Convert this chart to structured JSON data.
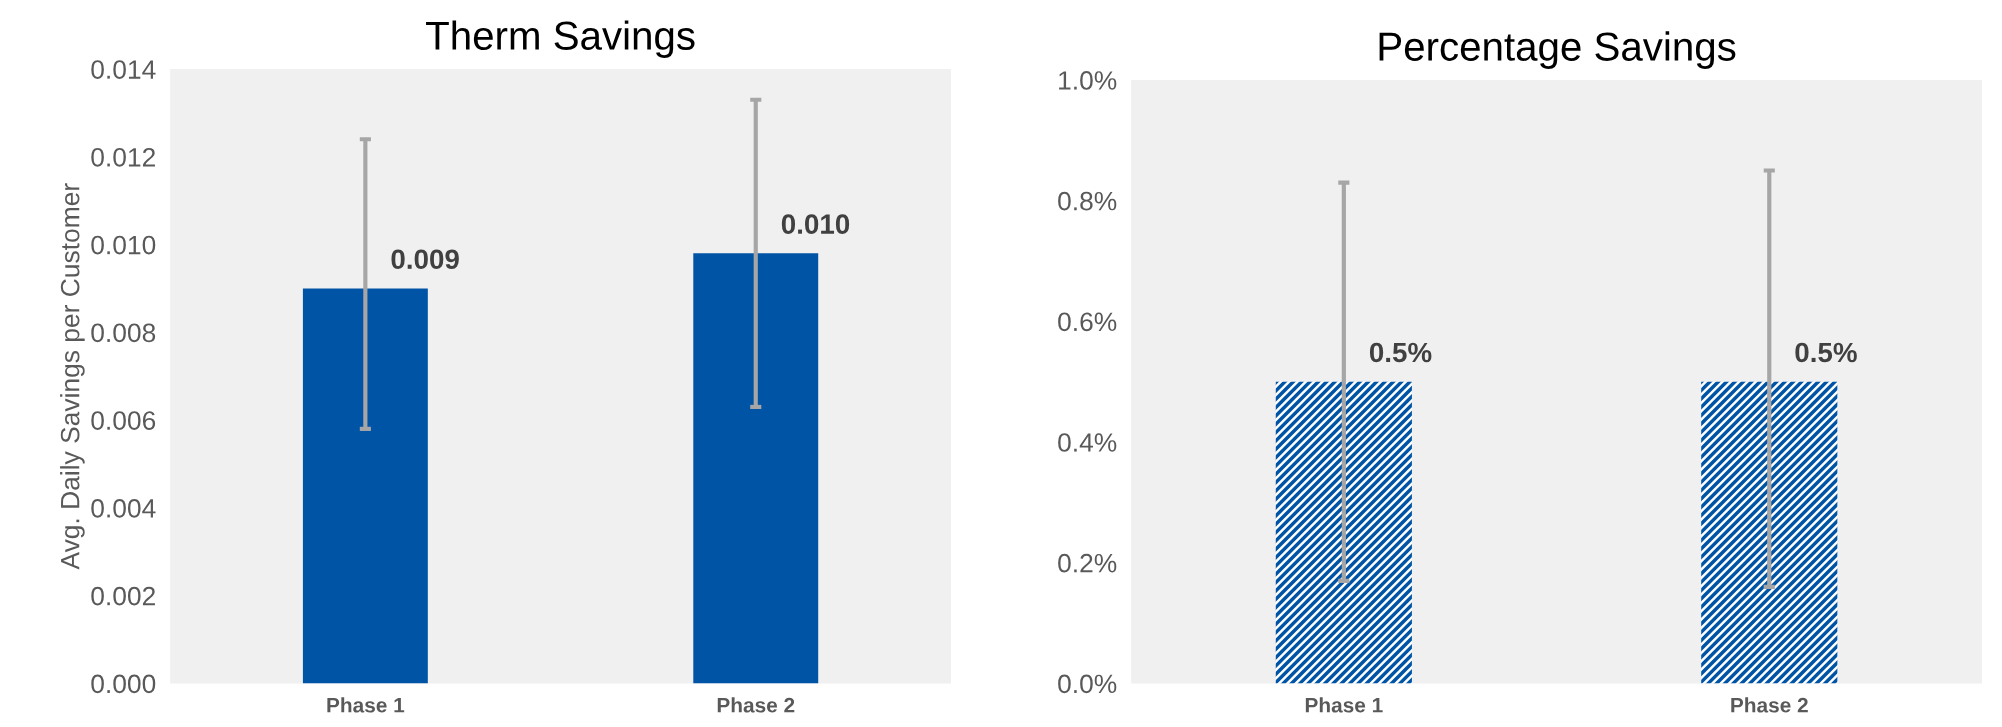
{
  "chart_data": [
    {
      "type": "bar",
      "title": "Therm Savings",
      "ylabel": "Avg. Daily Savings per Customer",
      "categories": [
        "Phase 1",
        "Phase 2"
      ],
      "series": [
        {
          "color": "#0054a6",
          "values": [
            0.009,
            0.0098
          ],
          "errors": [
            [
              0.0058,
              0.0124
            ],
            [
              0.0063,
              0.0133
            ]
          ],
          "value_labels": [
            "0.009",
            "0.010"
          ]
        }
      ],
      "ylim": [
        0,
        0.014
      ],
      "yticks": [
        {
          "value": 0,
          "label": "0.000"
        },
        {
          "value": 0.002,
          "label": "0.002"
        },
        {
          "value": 0.004,
          "label": "0.004"
        },
        {
          "value": 0.006,
          "label": "0.006"
        },
        {
          "value": 0.008,
          "label": "0.008"
        },
        {
          "value": 0.01,
          "label": "0.010"
        },
        {
          "value": 0.012,
          "label": "0.012"
        },
        {
          "value": 0.014,
          "label": "0.014"
        }
      ],
      "grid": false
    },
    {
      "type": "bar",
      "title": "Percentage Savings",
      "categories": [
        "Phase 1",
        "Phase 2"
      ],
      "series": [
        {
          "color": "#0054a6",
          "values": [
            0.5,
            0.5
          ],
          "errors": [
            [
              0.17,
              0.83
            ],
            [
              0.16,
              0.85
            ]
          ],
          "value_labels": [
            "0.5%",
            "0.5%"
          ]
        }
      ],
      "ylim": [
        0,
        1
      ],
      "yticks": [
        {
          "value": 0,
          "label": "0.0%"
        },
        {
          "value": 0.2,
          "label": "0.2%"
        },
        {
          "value": 0.4,
          "label": "0.4%"
        },
        {
          "value": 0.6,
          "label": "0.6%"
        },
        {
          "value": 0.8,
          "label": "0.8%"
        },
        {
          "value": 1,
          "label": "1.0%"
        }
      ],
      "grid": false
    }
  ]
}
